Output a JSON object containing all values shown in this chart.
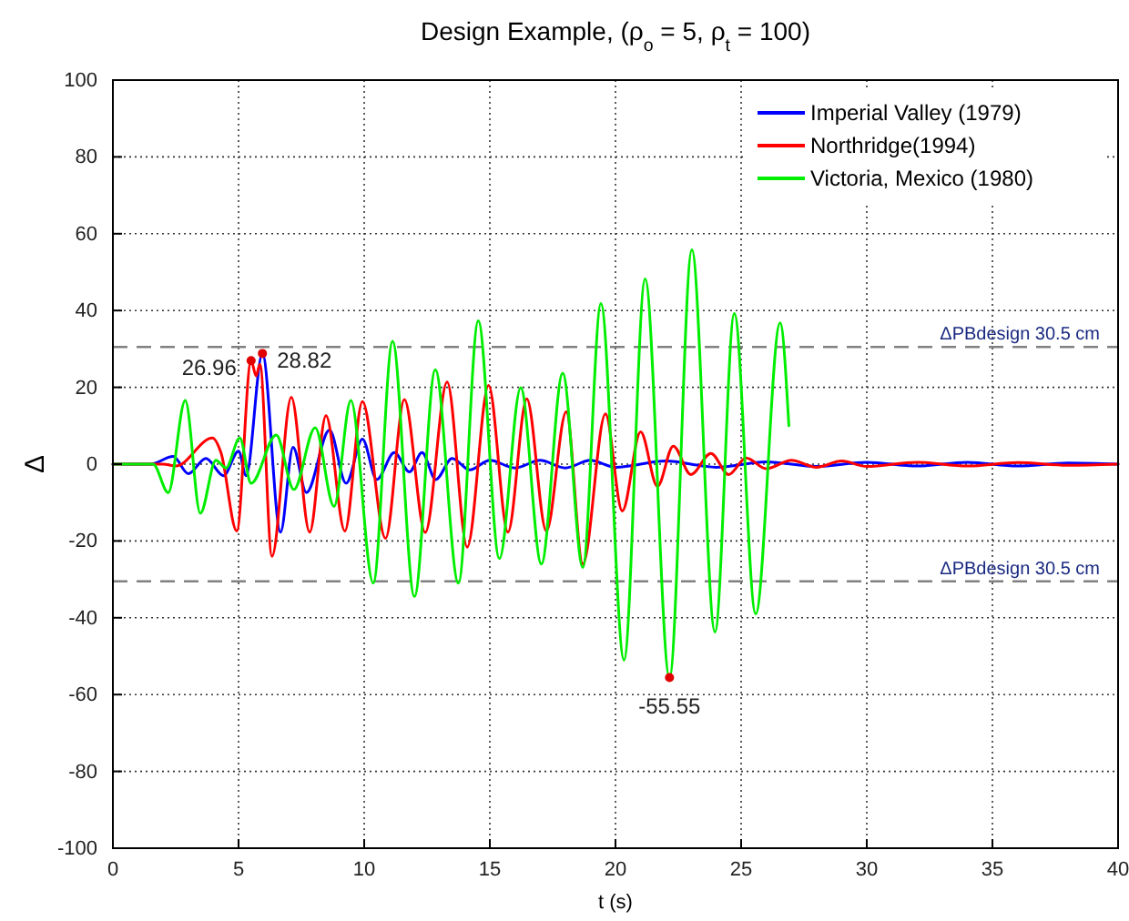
{
  "chart_data": {
    "type": "line",
    "title": "Design Example, (ρ$_{o}$ = 5, ρ$_{t}$ = 100)",
    "xlabel": "t (s)",
    "ylabel": "Δ",
    "xlim": [
      0,
      40
    ],
    "xticks": [
      0,
      5,
      10,
      15,
      20,
      25,
      30,
      35,
      40
    ],
    "ylim": [
      -100,
      100
    ],
    "yticks": [
      -100,
      -80,
      -60,
      -40,
      -20,
      0,
      20,
      40,
      60,
      80,
      100
    ],
    "grid": true,
    "legend": "top right",
    "line_style": "solid",
    "marker": "none",
    "series": [
      {
        "name": "Imperial Valley (1979)",
        "color": "#0000ff",
        "x": [
          0,
          1.5,
          2.4,
          3.0,
          3.7,
          4.4,
          5.0,
          5.3,
          5.95,
          6.67,
          7.17,
          7.7,
          8.62,
          9.28,
          9.93,
          10.5,
          11.2,
          11.8,
          12.3,
          12.85,
          13.5,
          14.2,
          15,
          16,
          17,
          18,
          19,
          20,
          22,
          24,
          26,
          28,
          30,
          32,
          34,
          36,
          38,
          40
        ],
        "values": [
          0,
          0,
          2,
          -2.5,
          1.5,
          -3,
          3.4,
          -3,
          28.82,
          -17.7,
          4.4,
          -7.4,
          8.9,
          -5,
          6.5,
          -4,
          3,
          -2,
          3,
          -4,
          1.5,
          -1.5,
          1,
          -1,
          1,
          -1,
          1,
          -0.8,
          0.8,
          -0.8,
          0.6,
          -0.6,
          0.5,
          -0.5,
          0.5,
          -0.5,
          0.3,
          0
        ]
      },
      {
        "name": "Northridge(1994)",
        "color": "#ff0000",
        "x": [
          0,
          2.0,
          2.5,
          3.96,
          4.3,
          4.93,
          5.5,
          5.7,
          5.85,
          6.33,
          7.1,
          7.83,
          8.48,
          9.23,
          9.93,
          10.85,
          11.6,
          12.43,
          13.3,
          14.1,
          14.95,
          15.72,
          16.47,
          17.25,
          18.04,
          18.7,
          19.6,
          20.27,
          21.0,
          21.67,
          22.3,
          23.0,
          23.8,
          24.5,
          25.2,
          26,
          27,
          28,
          29,
          30,
          32,
          34,
          36,
          38,
          40
        ],
        "values": [
          0,
          0,
          -0.5,
          6.8,
          3,
          -17.4,
          26.96,
          23,
          26,
          -24,
          17.4,
          -17.7,
          12.6,
          -17.4,
          16.3,
          -19.3,
          16.8,
          -17.8,
          21.4,
          -21.6,
          20.5,
          -17.7,
          17,
          -17.4,
          13.6,
          -26,
          13.1,
          -12.2,
          8.4,
          -5.8,
          4.7,
          -2.7,
          2.8,
          -2.7,
          1.6,
          -1.2,
          1,
          -0.8,
          0.8,
          -0.6,
          0.5,
          -0.5,
          0.4,
          -0.3,
          0
        ]
      },
      {
        "name": "Victoria, Mexico (1980)",
        "color": "#00ee00",
        "x": [
          0,
          1.6,
          2.2,
          2.88,
          3.48,
          4.1,
          4.5,
          5.05,
          5.5,
          6.5,
          7.2,
          8.05,
          8.8,
          9.47,
          10.36,
          11.13,
          12.0,
          12.83,
          13.75,
          14.54,
          15.38,
          16.23,
          17.05,
          17.9,
          18.7,
          19.42,
          20.34,
          21.18,
          22.15,
          23.04,
          23.96,
          24.73,
          25.58,
          26.55,
          26.9
        ],
        "values": [
          0,
          0,
          -7.4,
          16.6,
          -12.8,
          1,
          -1,
          6.8,
          -5,
          7.6,
          -6.6,
          9.5,
          -11,
          16.6,
          -31,
          32,
          -34.5,
          24.6,
          -31,
          37.3,
          -24.6,
          19.9,
          -26,
          23.7,
          -26.9,
          41.8,
          -51,
          48.2,
          -55.55,
          55.8,
          -43.7,
          39.2,
          -39,
          36.8,
          10
        ]
      }
    ],
    "ref_lines": [
      {
        "axis": "y",
        "value": 30.5,
        "label": "ΔPBdesign 30.5 cm",
        "color": "#808080",
        "line_style": "dashed"
      },
      {
        "axis": "y",
        "value": -30.5,
        "label": "ΔPBdesign 30.5 cm",
        "color": "#808080",
        "line_style": "dashed"
      }
    ],
    "annotations": [
      {
        "text": "26.96",
        "x": 5.5,
        "y": 26.96
      },
      {
        "text": "28.82",
        "x": 5.95,
        "y": 28.82
      },
      {
        "text": "-55.55",
        "x": 22.15,
        "y": -55.55
      }
    ]
  }
}
